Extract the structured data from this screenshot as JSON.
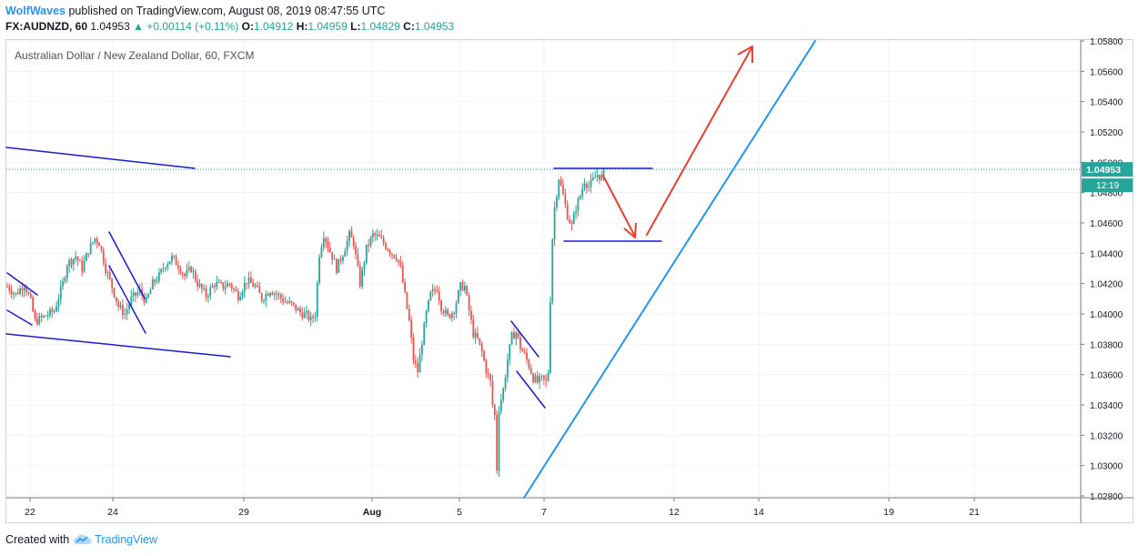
{
  "header": {
    "author": "WolfWaves",
    "published_text": "published on TradingView.com, August 08, 2019 08:47:55 UTC",
    "symbol": "FX:AUDNZD, 60",
    "last": "1.04953",
    "change": "▲ +0.00114 (+0.11%)",
    "open_label": "O:",
    "open": "1.04912",
    "high_label": "H:",
    "high": "1.04959",
    "low_label": "L:",
    "low": "1.04829",
    "close_label": "C:",
    "close": "1.04953"
  },
  "legend": "Australian Dollar / New Zealand Dollar, 60, FXCM",
  "footer": {
    "created_with": "Created with",
    "brand": "TradingView"
  },
  "colors": {
    "up": "#26a69a",
    "down": "#ef5350",
    "trend": "#2196f3",
    "pattern": "#1a1ad8",
    "arrow": "#ef3d2f",
    "price_badge": "#26a69a"
  },
  "chart_data": {
    "type": "candlestick",
    "y_ticks": [
      "1.02800",
      "1.03000",
      "1.03200",
      "1.03400",
      "1.03600",
      "1.03800",
      "1.04000",
      "1.04200",
      "1.04400",
      "1.04600",
      "1.04800",
      "1.05000",
      "1.05200",
      "1.05400",
      "1.05600",
      "1.05800"
    ],
    "x_ticks": [
      "22",
      "24",
      "29",
      "Aug",
      "5",
      "7",
      "12",
      "14",
      "19",
      "21"
    ],
    "ylim": [
      1.0278,
      1.0581
    ],
    "last_price_label": "1.04953",
    "countdown_label": "12:19",
    "close_path": [
      [
        0,
        1.0418
      ],
      [
        4,
        1.0413
      ],
      [
        8,
        1.042
      ],
      [
        11,
        1.0408
      ],
      [
        13,
        1.0395
      ],
      [
        17,
        1.0398
      ],
      [
        22,
        1.0402
      ],
      [
        26,
        1.042
      ],
      [
        28,
        1.0433
      ],
      [
        32,
        1.0438
      ],
      [
        35,
        1.043
      ],
      [
        38,
        1.0442
      ],
      [
        41,
        1.045
      ],
      [
        43,
        1.0447
      ],
      [
        46,
        1.043
      ],
      [
        49,
        1.0418
      ],
      [
        52,
        1.0405
      ],
      [
        55,
        1.04
      ],
      [
        58,
        1.041
      ],
      [
        62,
        1.0415
      ],
      [
        65,
        1.0408
      ],
      [
        68,
        1.042
      ],
      [
        71,
        1.0425
      ],
      [
        74,
        1.0433
      ],
      [
        77,
        1.0437
      ],
      [
        80,
        1.0432
      ],
      [
        83,
        1.0425
      ],
      [
        86,
        1.043
      ],
      [
        89,
        1.042
      ],
      [
        93,
        1.0412
      ],
      [
        97,
        1.042
      ],
      [
        101,
        1.0418
      ],
      [
        104,
        1.042
      ],
      [
        108,
        1.0412
      ],
      [
        112,
        1.0422
      ],
      [
        116,
        1.0418
      ],
      [
        119,
        1.041
      ],
      [
        123,
        1.0416
      ],
      [
        127,
        1.0412
      ],
      [
        130,
        1.0408
      ],
      [
        133,
        1.0406
      ],
      [
        137,
        1.0401
      ],
      [
        140,
        1.0399
      ],
      [
        142,
        1.0396
      ],
      [
        144,
        1.04
      ],
      [
        146,
        1.044
      ],
      [
        148,
        1.0453
      ],
      [
        150,
        1.0445
      ],
      [
        152,
        1.0438
      ],
      [
        154,
        1.043
      ],
      [
        157,
        1.044
      ],
      [
        160,
        1.0452
      ],
      [
        162,
        1.0447
      ],
      [
        165,
        1.042
      ],
      [
        168,
        1.0443
      ],
      [
        171,
        1.0452
      ],
      [
        174,
        1.045
      ],
      [
        177,
        1.0445
      ],
      [
        180,
        1.044
      ],
      [
        182,
        1.0438
      ],
      [
        184,
        1.043
      ],
      [
        186,
        1.0412
      ],
      [
        188,
        1.0395
      ],
      [
        190,
        1.037
      ],
      [
        192,
        1.0362
      ],
      [
        194,
        1.0382
      ],
      [
        196,
        1.04
      ],
      [
        198,
        1.0413
      ],
      [
        201,
        1.0417
      ],
      [
        203,
        1.0405
      ],
      [
        206,
        1.0398
      ],
      [
        209,
        1.0403
      ],
      [
        212,
        1.0418
      ],
      [
        214,
        1.0418
      ],
      [
        216,
        1.0402
      ],
      [
        218,
        1.0387
      ],
      [
        220,
        1.0383
      ],
      [
        222,
        1.0375
      ],
      [
        224,
        1.0363
      ],
      [
        226,
        1.0355
      ],
      [
        227,
        1.034
      ],
      [
        228,
        1.0333
      ],
      [
        229,
        1.0298
      ],
      [
        230,
        1.0338
      ],
      [
        232,
        1.035
      ],
      [
        234,
        1.037
      ],
      [
        236,
        1.0385
      ],
      [
        238,
        1.0388
      ],
      [
        240,
        1.0378
      ],
      [
        242,
        1.0373
      ],
      [
        244,
        1.0366
      ],
      [
        246,
        1.0358
      ],
      [
        248,
        1.0355
      ],
      [
        250,
        1.0357
      ],
      [
        252,
        1.0355
      ],
      [
        253,
        1.0362
      ],
      [
        254,
        1.041
      ],
      [
        255,
        1.045
      ],
      [
        256,
        1.047
      ],
      [
        258,
        1.049
      ],
      [
        260,
        1.0478
      ],
      [
        262,
        1.0465
      ],
      [
        264,
        1.0458
      ],
      [
        266,
        1.047
      ],
      [
        268,
        1.0478
      ],
      [
        270,
        1.0488
      ],
      [
        272,
        1.0484
      ],
      [
        274,
        1.0488
      ],
      [
        276,
        1.0492
      ],
      [
        278,
        1.049
      ],
      [
        280,
        1.0495
      ]
    ],
    "annotations": [
      {
        "type": "trend_line",
        "label": "upper descending"
      },
      {
        "type": "trend_line",
        "label": "lower descending"
      },
      {
        "type": "trend_line",
        "label": "ascending support"
      },
      {
        "type": "horizontal",
        "label": "range top"
      },
      {
        "type": "horizontal",
        "label": "range bottom"
      },
      {
        "type": "arrow",
        "label": "down to range bottom"
      },
      {
        "type": "arrow",
        "label": "up target"
      }
    ]
  }
}
